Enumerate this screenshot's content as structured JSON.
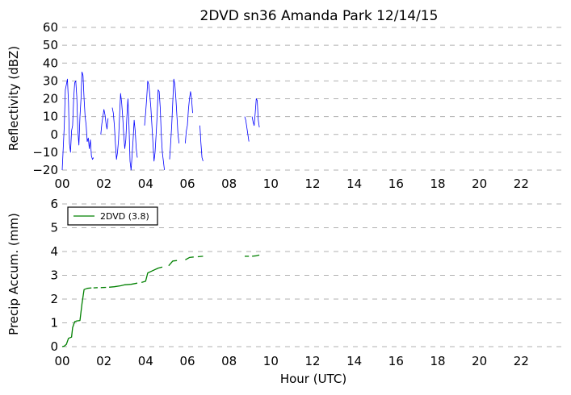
{
  "chart_data": [
    {
      "type": "line",
      "title": "2DVD sn36 Amanda Park 12/14/15",
      "xlabel": "",
      "ylabel": "Reflectivity (dBZ)",
      "xlim": [
        0,
        24
      ],
      "ylim": [
        -20,
        60
      ],
      "x_ticks": [
        "00",
        "02",
        "04",
        "06",
        "08",
        "10",
        "12",
        "14",
        "16",
        "18",
        "20",
        "22"
      ],
      "y_ticks": [
        "60",
        "50",
        "40",
        "30",
        "20",
        "10",
        "0",
        "−10",
        "−20"
      ],
      "grid": "horizontal dashed",
      "color": "#0000ff",
      "segments": [
        [
          [
            0.0,
            -20
          ],
          [
            0.1,
            5
          ],
          [
            0.15,
            25
          ],
          [
            0.25,
            31
          ],
          [
            0.3,
            18
          ],
          [
            0.35,
            -5
          ],
          [
            0.4,
            -10
          ],
          [
            0.45,
            2
          ],
          [
            0.5,
            5
          ],
          [
            0.55,
            20
          ],
          [
            0.6,
            29
          ],
          [
            0.65,
            30
          ],
          [
            0.7,
            21
          ],
          [
            0.75,
            2
          ],
          [
            0.8,
            -6
          ],
          [
            0.85,
            10
          ],
          [
            0.9,
            20
          ],
          [
            0.95,
            35
          ],
          [
            1.0,
            33
          ],
          [
            1.05,
            20
          ],
          [
            1.1,
            10
          ],
          [
            1.15,
            5
          ],
          [
            1.2,
            -4
          ],
          [
            1.25,
            -2
          ],
          [
            1.3,
            -8
          ],
          [
            1.35,
            -3
          ],
          [
            1.4,
            -12
          ],
          [
            1.45,
            -14
          ],
          [
            1.5,
            -13
          ]
        ],
        [
          [
            1.85,
            0
          ],
          [
            1.9,
            6
          ],
          [
            1.95,
            10
          ],
          [
            2.0,
            14
          ],
          [
            2.05,
            11
          ],
          [
            2.1,
            6
          ],
          [
            2.15,
            3
          ],
          [
            2.2,
            9
          ]
        ],
        [
          [
            2.4,
            15
          ],
          [
            2.45,
            12
          ],
          [
            2.5,
            5
          ],
          [
            2.55,
            -5
          ],
          [
            2.6,
            -14
          ],
          [
            2.65,
            -10
          ],
          [
            2.7,
            -3
          ],
          [
            2.75,
            10
          ],
          [
            2.8,
            23
          ],
          [
            2.85,
            18
          ],
          [
            2.9,
            10
          ],
          [
            2.95,
            0
          ],
          [
            3.0,
            -8
          ],
          [
            3.05,
            -3
          ],
          [
            3.1,
            10
          ],
          [
            3.15,
            20
          ],
          [
            3.2,
            5
          ],
          [
            3.25,
            -15
          ],
          [
            3.3,
            -20
          ],
          [
            3.35,
            -12
          ],
          [
            3.4,
            -3
          ],
          [
            3.45,
            8
          ],
          [
            3.5,
            2
          ],
          [
            3.55,
            -8
          ],
          [
            3.6,
            -13
          ]
        ],
        [
          [
            3.95,
            5
          ],
          [
            4.0,
            12
          ],
          [
            4.05,
            20
          ],
          [
            4.1,
            30
          ],
          [
            4.15,
            28
          ],
          [
            4.2,
            22
          ],
          [
            4.25,
            15
          ],
          [
            4.3,
            5
          ],
          [
            4.35,
            -5
          ],
          [
            4.4,
            -15
          ],
          [
            4.45,
            -10
          ],
          [
            4.5,
            0
          ],
          [
            4.55,
            10
          ],
          [
            4.6,
            25
          ],
          [
            4.65,
            24
          ],
          [
            4.7,
            15
          ],
          [
            4.75,
            0
          ],
          [
            4.8,
            -10
          ],
          [
            4.85,
            -15
          ],
          [
            4.9,
            -20
          ]
        ],
        [
          [
            5.15,
            -14
          ],
          [
            5.2,
            -5
          ],
          [
            5.25,
            5
          ],
          [
            5.3,
            18
          ],
          [
            5.35,
            31
          ],
          [
            5.4,
            28
          ],
          [
            5.45,
            20
          ],
          [
            5.5,
            10
          ],
          [
            5.55,
            0
          ],
          [
            5.6,
            -5
          ]
        ],
        [
          [
            5.9,
            -5
          ],
          [
            5.95,
            2
          ],
          [
            6.0,
            5
          ],
          [
            6.05,
            14
          ],
          [
            6.1,
            20
          ],
          [
            6.15,
            24
          ],
          [
            6.2,
            20
          ],
          [
            6.25,
            12
          ]
        ],
        [
          [
            6.6,
            5
          ],
          [
            6.65,
            -5
          ],
          [
            6.7,
            -13
          ],
          [
            6.75,
            -15
          ]
        ],
        [
          [
            8.75,
            10
          ],
          [
            8.8,
            8
          ],
          [
            8.85,
            4
          ],
          [
            8.9,
            0
          ],
          [
            8.95,
            -4
          ]
        ],
        [
          [
            9.1,
            10
          ],
          [
            9.15,
            7
          ],
          [
            9.2,
            5
          ],
          [
            9.25,
            12
          ],
          [
            9.3,
            20
          ],
          [
            9.35,
            19
          ],
          [
            9.4,
            8
          ],
          [
            9.45,
            4
          ]
        ]
      ]
    },
    {
      "type": "line",
      "title": "",
      "xlabel": "Hour (UTC)",
      "ylabel": "Precip Accum. (mm)",
      "xlim": [
        0,
        24
      ],
      "ylim": [
        0,
        6
      ],
      "x_ticks": [
        "00",
        "02",
        "04",
        "06",
        "08",
        "10",
        "12",
        "14",
        "16",
        "18",
        "20",
        "22"
      ],
      "y_ticks": [
        "6",
        "5",
        "4",
        "3",
        "2",
        "1",
        "0"
      ],
      "grid": "horizontal dashed",
      "legend": "top-left",
      "color": "#008000",
      "series": [
        {
          "name": "2DVD (3.8)",
          "segments": [
            [
              [
                0.0,
                0.0
              ],
              [
                0.1,
                0.02
              ],
              [
                0.2,
                0.1
              ],
              [
                0.3,
                0.35
              ],
              [
                0.45,
                0.4
              ],
              [
                0.5,
                0.8
              ],
              [
                0.6,
                1.05
              ],
              [
                0.7,
                1.08
              ],
              [
                0.85,
                1.1
              ],
              [
                0.95,
                1.8
              ],
              [
                1.05,
                2.4
              ],
              [
                1.2,
                2.45
              ],
              [
                1.4,
                2.47
              ]
            ],
            [
              [
                1.5,
                2.47
              ],
              [
                1.7,
                2.48
              ]
            ],
            [
              [
                1.85,
                2.48
              ],
              [
                2.1,
                2.49
              ]
            ],
            [
              [
                2.25,
                2.5
              ],
              [
                2.5,
                2.52
              ],
              [
                2.8,
                2.56
              ],
              [
                3.0,
                2.6
              ],
              [
                3.3,
                2.62
              ],
              [
                3.6,
                2.67
              ]
            ],
            [
              [
                3.8,
                2.7
              ],
              [
                4.0,
                2.75
              ],
              [
                4.1,
                3.1
              ],
              [
                4.3,
                3.18
              ],
              [
                4.6,
                3.3
              ],
              [
                4.8,
                3.35
              ]
            ],
            [
              [
                5.1,
                3.4
              ],
              [
                5.3,
                3.6
              ],
              [
                5.5,
                3.62
              ]
            ],
            [
              [
                5.9,
                3.65
              ],
              [
                6.1,
                3.75
              ],
              [
                6.3,
                3.77
              ]
            ],
            [
              [
                6.5,
                3.78
              ],
              [
                6.75,
                3.8
              ]
            ],
            [
              [
                8.75,
                3.8
              ],
              [
                8.95,
                3.8
              ]
            ],
            [
              [
                9.1,
                3.8
              ],
              [
                9.3,
                3.82
              ],
              [
                9.45,
                3.85
              ]
            ]
          ]
        }
      ]
    }
  ]
}
